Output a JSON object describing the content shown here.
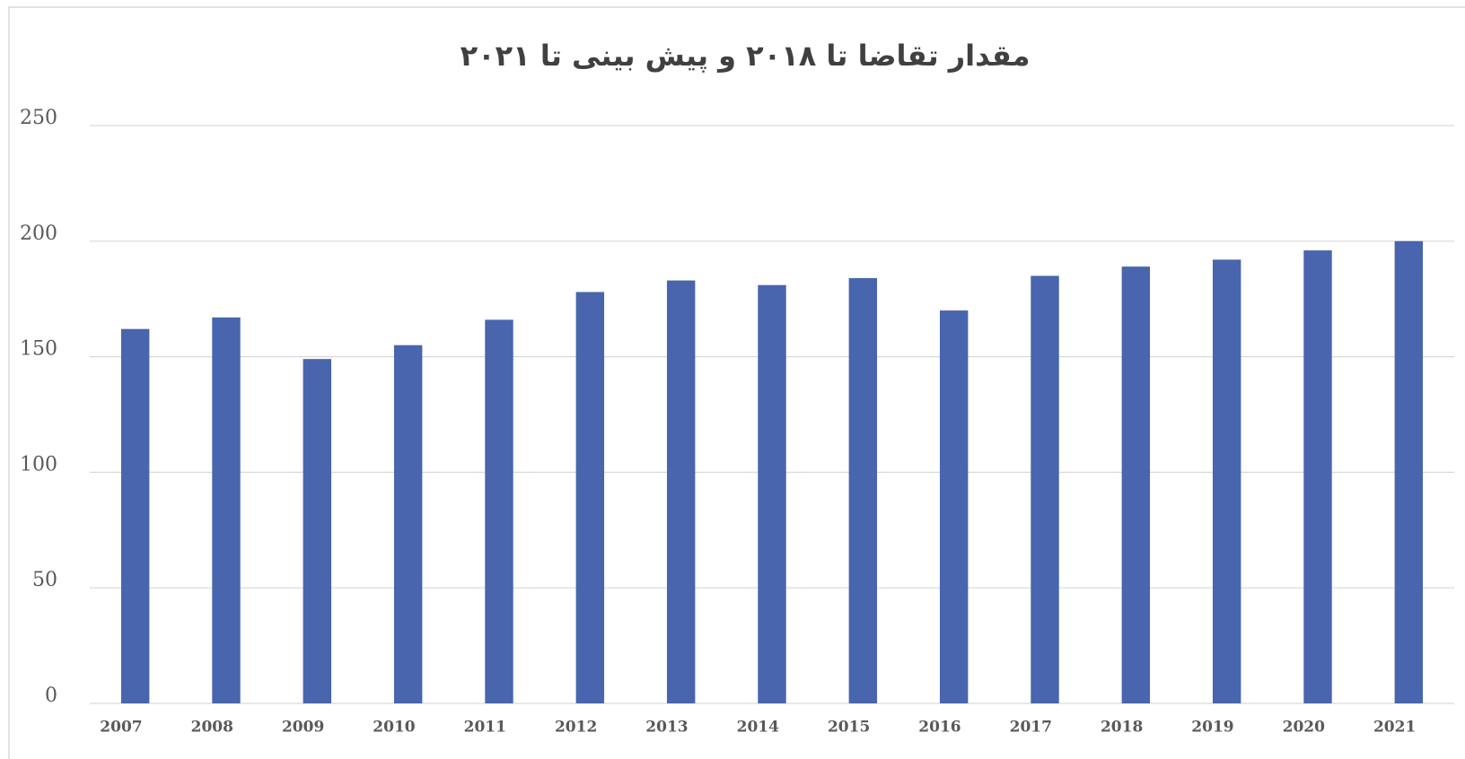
{
  "chart_data": {
    "type": "bar",
    "title": "مقدار تقاضا تا ۲۰۱۸ و پیش بینی تا ۲۰۲۱",
    "categories": [
      "2007",
      "2008",
      "2009",
      "2010",
      "2011",
      "2012",
      "2013",
      "2014",
      "2015",
      "2016",
      "2017",
      "2018",
      "2019",
      "2020",
      "2021"
    ],
    "values": [
      162,
      167,
      149,
      155,
      166,
      178,
      183,
      181,
      184,
      170,
      185,
      189,
      192,
      196,
      200
    ],
    "color": "#4865ad",
    "ylim": [
      0,
      250
    ],
    "yticks": [
      0,
      50,
      100,
      150,
      200,
      250
    ],
    "grid": true
  }
}
